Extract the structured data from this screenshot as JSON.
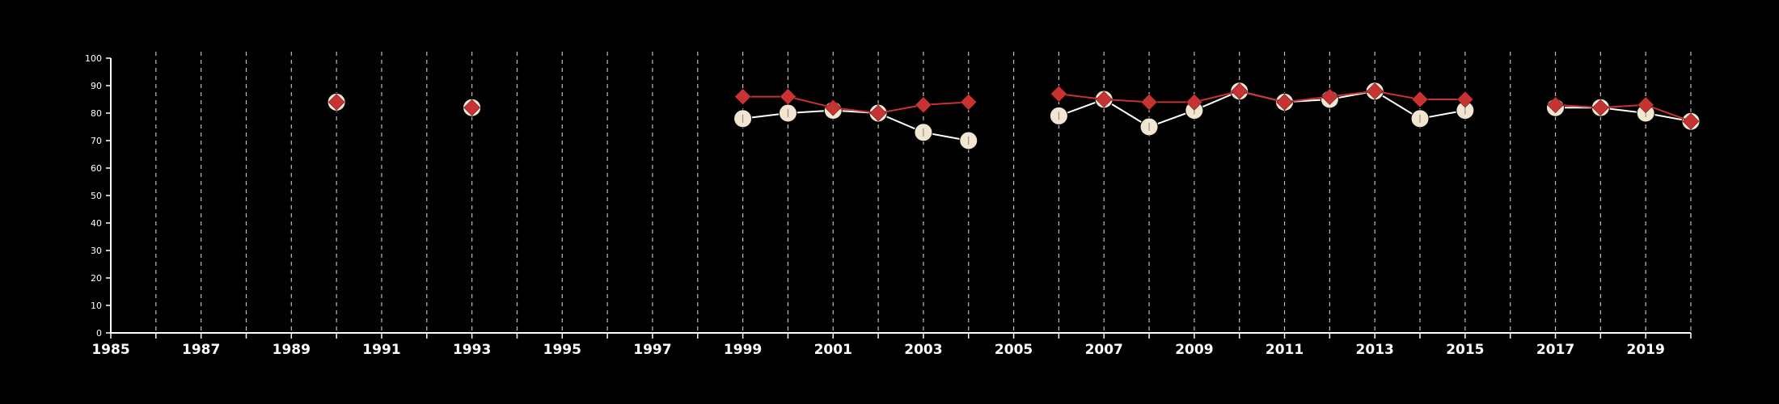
{
  "chart_data": {
    "type": "line",
    "title": "",
    "xlabel": "",
    "ylabel": "",
    "xlim": [
      1985,
      2020
    ],
    "ylim": [
      0,
      100
    ],
    "x_ticks": [
      "1985",
      "1987",
      "1989",
      "1991",
      "1993",
      "1995",
      "1997",
      "1999",
      "2001",
      "2003",
      "2005",
      "2007",
      "2009",
      "2011",
      "2013",
      "2015",
      "2017",
      "2019"
    ],
    "y_ticks": [
      "0",
      "10",
      "20",
      "30",
      "40",
      "50",
      "60",
      "70",
      "80",
      "90",
      "100"
    ],
    "vertical_gridlines": "dashed, every year",
    "legend": "none",
    "series": [
      {
        "color": "#f2e6d2",
        "marker": "circle",
        "x": [
          1990,
          1993,
          1999,
          2000,
          2001,
          2002,
          2003,
          2004,
          2006,
          2007,
          2008,
          2009,
          2010,
          2011,
          2012,
          2013,
          2014,
          2015,
          2017,
          2018,
          2019,
          2020
        ],
        "values": [
          84,
          82,
          78,
          80,
          81,
          80,
          73,
          70,
          79,
          85,
          75,
          81,
          88,
          84,
          85,
          88,
          78,
          81,
          82,
          82,
          80,
          77
        ]
      },
      {
        "color": "#c83232",
        "marker": "diamond",
        "x": [
          1990,
          1993,
          1999,
          2000,
          2001,
          2002,
          2003,
          2004,
          2006,
          2007,
          2008,
          2009,
          2010,
          2011,
          2012,
          2013,
          2014,
          2015,
          2017,
          2018,
          2019,
          2020
        ],
        "values": [
          84,
          82,
          86,
          86,
          82,
          80,
          83,
          84,
          87,
          85,
          84,
          84,
          88,
          84,
          86,
          88,
          85,
          85,
          83,
          82,
          83,
          77
        ]
      }
    ]
  }
}
